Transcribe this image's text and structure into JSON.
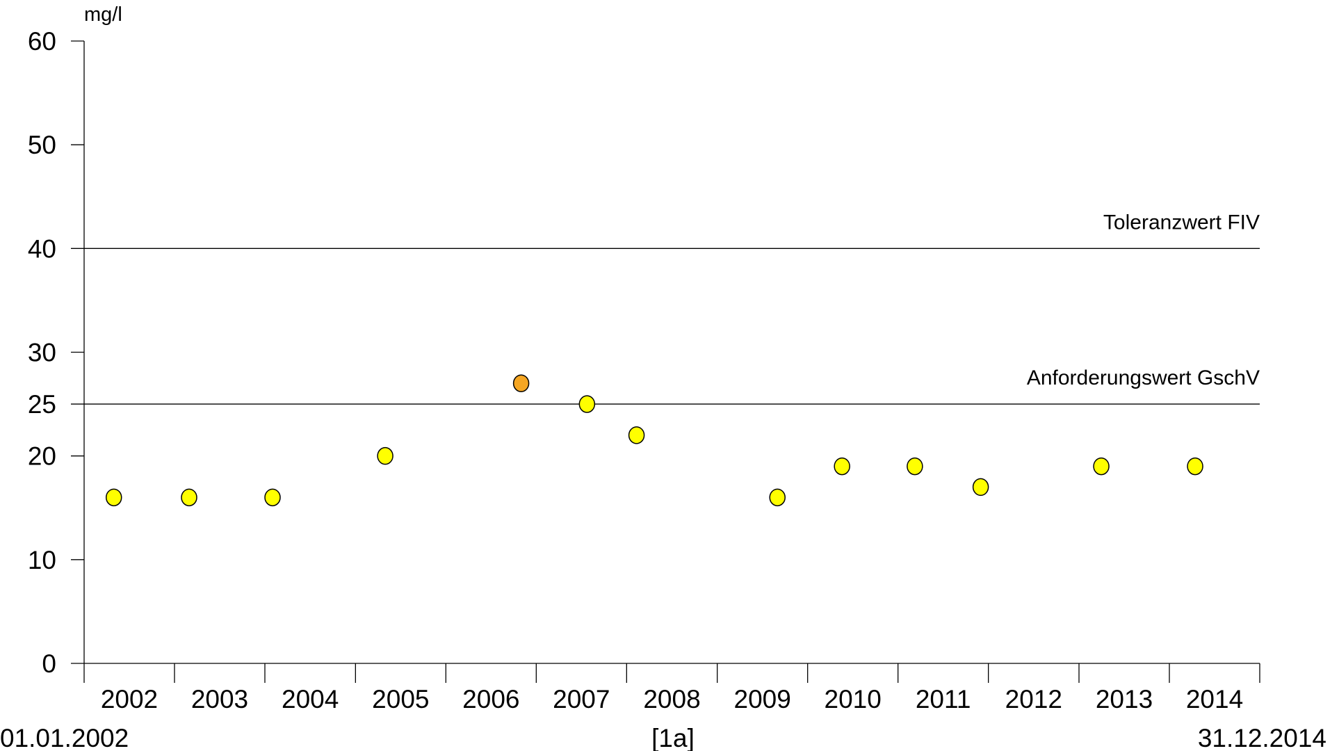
{
  "chart_data": {
    "type": "scatter",
    "ylabel": "mg/l",
    "ylim": [
      0,
      60
    ],
    "yticks": [
      0,
      10,
      20,
      25,
      30,
      40,
      50,
      60
    ],
    "xlim": [
      "2002-01-01",
      "2014-12-31"
    ],
    "xticklabels": [
      "2002",
      "2003",
      "2004",
      "2005",
      "2006",
      "2007",
      "2008",
      "2009",
      "2010",
      "2011",
      "2012",
      "2013",
      "2014"
    ],
    "start_label": "01.01.2002",
    "end_label": "31.12.2014",
    "center_label": "[1a]",
    "grid": false,
    "reference_lines": [
      {
        "label": "Toleranzwert FIV",
        "value": 40
      },
      {
        "label": "Anforderungswert GschV",
        "value": 25
      }
    ],
    "points": [
      {
        "date": "2002-05-01",
        "value": 16,
        "color": "#ffff00"
      },
      {
        "date": "2003-03-01",
        "value": 16,
        "color": "#ffff00"
      },
      {
        "date": "2004-02-01",
        "value": 16,
        "color": "#ffff00"
      },
      {
        "date": "2005-05-01",
        "value": 20,
        "color": "#ffff00"
      },
      {
        "date": "2006-11-01",
        "value": 27,
        "color": "#f5a623"
      },
      {
        "date": "2007-07-25",
        "value": 25,
        "color": "#ffff00"
      },
      {
        "date": "2008-02-10",
        "value": 22,
        "color": "#ffff00"
      },
      {
        "date": "2009-09-01",
        "value": 16,
        "color": "#ffff00"
      },
      {
        "date": "2010-05-20",
        "value": 19,
        "color": "#ffff00"
      },
      {
        "date": "2011-03-10",
        "value": 19,
        "color": "#ffff00"
      },
      {
        "date": "2011-12-01",
        "value": 17,
        "color": "#ffff00"
      },
      {
        "date": "2013-04-01",
        "value": 19,
        "color": "#ffff00"
      },
      {
        "date": "2014-04-15",
        "value": 19,
        "color": "#ffff00"
      }
    ]
  }
}
